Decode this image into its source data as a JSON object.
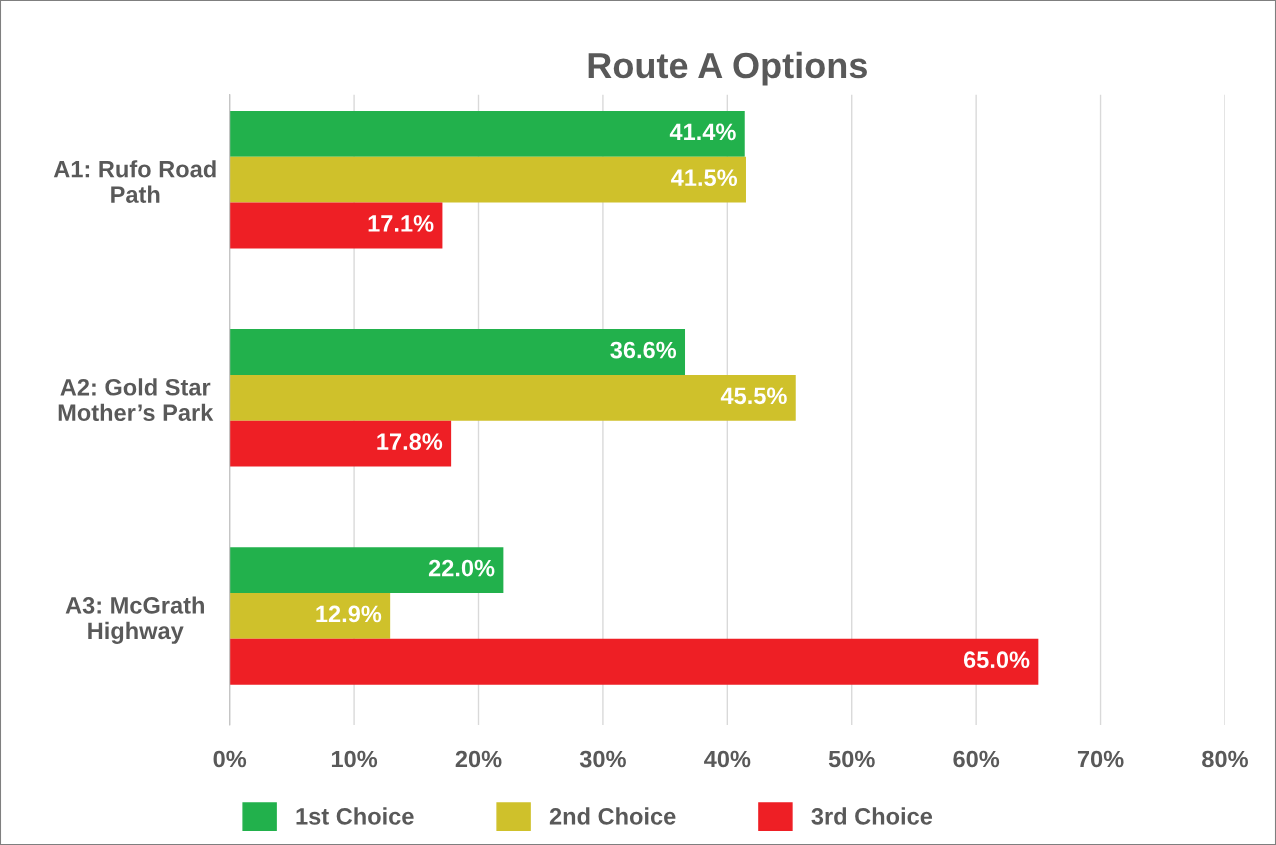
{
  "chart_data": {
    "type": "bar",
    "orientation": "horizontal",
    "title": "Route A Options",
    "categories": [
      "A1: Rufo Road\nPath",
      "A2: Gold Star\nMother’s Park",
      "A3: McGrath\nHighway"
    ],
    "series": [
      {
        "name": "1st Choice",
        "color": "#22b14c",
        "values": [
          41.4,
          36.6,
          22.0
        ],
        "value_labels": [
          "41.4%",
          "36.6%",
          "22.0%"
        ]
      },
      {
        "name": "2nd Choice",
        "color": "#cfc12b",
        "values": [
          41.5,
          45.5,
          12.9
        ],
        "value_labels": [
          "41.5%",
          "45.5%",
          "12.9%"
        ]
      },
      {
        "name": "3rd Choice",
        "color": "#ee1f25",
        "values": [
          17.1,
          17.8,
          65.0
        ],
        "value_labels": [
          "17.1%",
          "17.8%",
          "65.0%"
        ]
      }
    ],
    "xlim": [
      0,
      80
    ],
    "xticks": [
      {
        "value": 0,
        "label": "0%"
      },
      {
        "value": 10,
        "label": "10%"
      },
      {
        "value": 20,
        "label": "20%"
      },
      {
        "value": 30,
        "label": "30%"
      },
      {
        "value": 40,
        "label": "40%"
      },
      {
        "value": 50,
        "label": "50%"
      },
      {
        "value": 60,
        "label": "60%"
      },
      {
        "value": 70,
        "label": "70%"
      },
      {
        "value": 80,
        "label": "80%"
      }
    ],
    "grid": "x",
    "legend": "bottom"
  }
}
